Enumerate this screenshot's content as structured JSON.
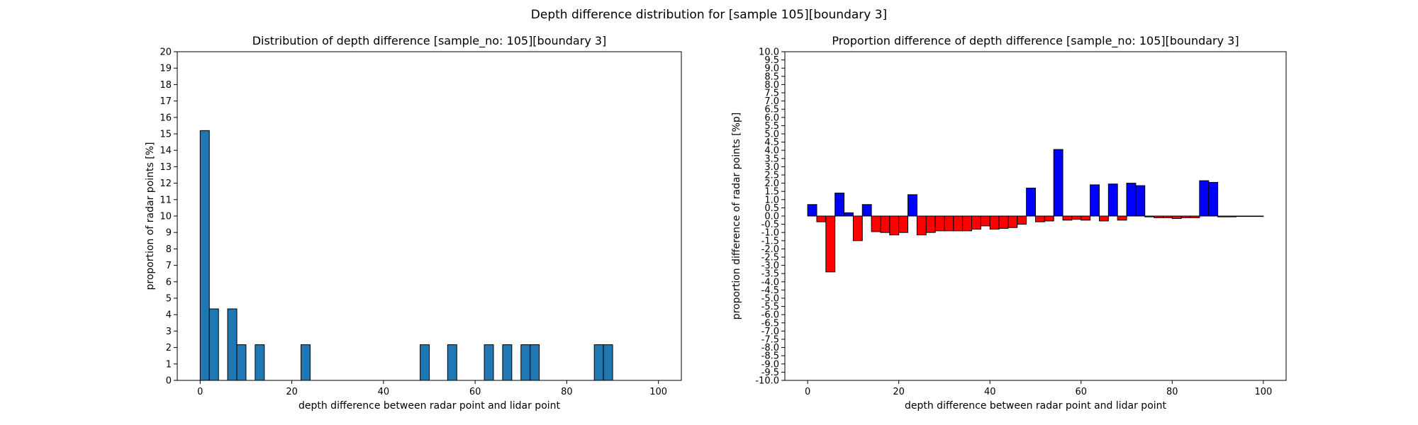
{
  "figure": {
    "suptitle": "Depth difference distribution for [sample 105][boundary 3]"
  },
  "chart_data": [
    {
      "type": "bar",
      "title": "Distribution of depth difference [sample_no: 105][boundary 3]",
      "xlabel": "depth difference between radar point and lidar point",
      "ylabel": "proportion of radar points [%]",
      "xlim": [
        -5,
        105
      ],
      "ylim": [
        0,
        20
      ],
      "xticks": [
        0,
        20,
        40,
        60,
        80,
        100
      ],
      "yticks": [
        0,
        1,
        2,
        3,
        4,
        5,
        6,
        7,
        8,
        9,
        10,
        11,
        12,
        13,
        14,
        15,
        16,
        17,
        18,
        19,
        20
      ],
      "bin_width": 2,
      "bin_start": 0,
      "values": [
        15.2,
        4.35,
        0,
        4.35,
        2.17,
        0,
        2.17,
        0,
        0,
        0,
        0,
        2.17,
        0,
        0,
        0,
        0,
        0,
        0,
        0,
        0,
        0,
        0,
        0,
        0,
        2.17,
        0,
        0,
        2.17,
        0,
        0,
        0,
        2.17,
        0,
        2.17,
        0,
        2.17,
        2.17,
        0,
        0,
        0,
        0,
        0,
        0,
        2.17,
        2.17,
        0,
        0,
        0,
        0,
        0
      ],
      "bar_color": "#1f77b4",
      "edge_color": "#000000",
      "grid": false
    },
    {
      "type": "bar",
      "title": "Proportion difference of depth difference [sample_no: 105][boundary 3]",
      "xlabel": "depth difference between radar point and lidar point",
      "ylabel": "proportion difference of radar points [%p]",
      "xlim": [
        -5,
        105
      ],
      "ylim": [
        -10,
        10
      ],
      "xticks": [
        0,
        20,
        40,
        60,
        80,
        100
      ],
      "yticks": [
        -10.0,
        -9.5,
        -9.0,
        -8.5,
        -8.0,
        -7.5,
        -7.0,
        -6.5,
        -6.0,
        -5.5,
        -5.0,
        -4.5,
        -4.0,
        -3.5,
        -3.0,
        -2.5,
        -2.0,
        -1.5,
        -1.0,
        -0.5,
        0.0,
        0.5,
        1.0,
        1.5,
        2.0,
        2.5,
        3.0,
        3.5,
        4.0,
        4.5,
        5.0,
        5.5,
        6.0,
        6.5,
        7.0,
        7.5,
        8.0,
        8.5,
        9.0,
        9.5,
        10.0
      ],
      "bin_width": 2,
      "bin_start": 0,
      "values": [
        0.7,
        -0.35,
        -3.4,
        1.4,
        0.2,
        -1.5,
        0.7,
        -0.95,
        -1.0,
        -1.15,
        -1.0,
        1.3,
        -1.15,
        -1.0,
        -0.9,
        -0.9,
        -0.9,
        -0.9,
        -0.8,
        -0.6,
        -0.8,
        -0.75,
        -0.7,
        -0.5,
        1.7,
        -0.35,
        -0.3,
        4.05,
        -0.25,
        -0.2,
        -0.25,
        1.9,
        -0.3,
        1.95,
        -0.25,
        2.0,
        1.85,
        -0.05,
        -0.1,
        -0.1,
        -0.15,
        -0.1,
        -0.1,
        2.15,
        2.05,
        -0.05,
        -0.05,
        -0.02,
        -0.02,
        -0.02
      ],
      "positive_color": "#0000ff",
      "negative_color": "#ff0000",
      "edge_color": "#000000",
      "grid": false
    }
  ]
}
